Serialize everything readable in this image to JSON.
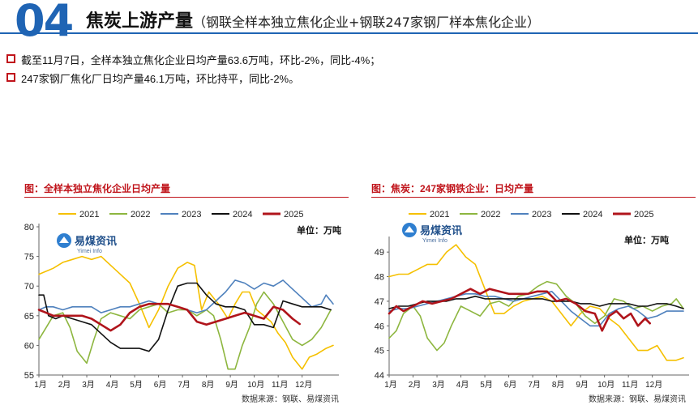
{
  "header": {
    "section_number": "04",
    "title": "焦炭上游产量",
    "subtitle": "（钢联全样本独立焦化企业+钢联247家钢厂样本焦化企业）"
  },
  "bullets": [
    "截至11月7日，全样本独立焦化企业日均产量63.6万吨，环比-2%，同比-4%；",
    "247家钢厂焦化厂日均产量46.1万吨，环比持平，同比-2%。"
  ],
  "colors": {
    "accent": "#1f64b4",
    "title_red": "#c0141b",
    "s2021": "#f5c000",
    "s2022": "#8db63f",
    "s2023": "#4f81bd",
    "s2024": "#111111",
    "s2025": "#b0141b"
  },
  "chart_data": [
    {
      "type": "line",
      "title": "图：全样本独立焦化企业日均产量",
      "unit_label": "单位：万吨",
      "watermark": "易煤资讯",
      "watermark_en": "Yimei Info",
      "source": "数据来源：钢联、易煤资讯",
      "x_ticks": [
        "1月",
        "2月",
        "3月",
        "4月",
        "5月",
        "6月",
        "7月",
        "8月",
        "9月",
        "10月",
        "11月",
        "12月"
      ],
      "xlim": [
        0,
        12.4
      ],
      "ylim": [
        55,
        80
      ],
      "y_ticks": [
        55,
        60,
        65,
        70,
        75,
        80
      ],
      "series": [
        {
          "name": "2021",
          "x": [
            0,
            0.3,
            0.6,
            1,
            1.4,
            1.8,
            2.2,
            2.6,
            3,
            3.4,
            3.8,
            4.2,
            4.6,
            5,
            5.4,
            5.8,
            6.2,
            6.5,
            6.8,
            7.1,
            7.5,
            7.9,
            8.2,
            8.5,
            8.8,
            9.1,
            9.4,
            9.7,
            10,
            10.3,
            10.6,
            11,
            11.3,
            11.6,
            12,
            12.3
          ],
          "values": [
            72,
            72.5,
            73,
            74,
            74.5,
            75,
            74.5,
            75,
            73.5,
            72,
            70.5,
            67,
            63,
            66,
            70,
            73,
            74,
            73.5,
            66,
            69,
            67,
            64.5,
            67,
            69,
            69,
            66,
            65,
            64,
            62,
            60.5,
            58,
            56,
            58,
            58.5,
            59.5,
            60
          ]
        },
        {
          "name": "2022",
          "x": [
            0,
            0.3,
            0.6,
            1,
            1.3,
            1.6,
            2,
            2.3,
            2.6,
            3,
            3.4,
            3.8,
            4.2,
            4.6,
            5,
            5.4,
            5.8,
            6.2,
            6.6,
            7,
            7.3,
            7.6,
            7.9,
            8.2,
            8.5,
            8.8,
            9.1,
            9.4,
            9.8,
            10.2,
            10.6,
            11,
            11.4,
            11.8,
            12.2
          ],
          "values": [
            61,
            63,
            65,
            65.5,
            63,
            59,
            57,
            61,
            64.5,
            65.5,
            65,
            64.5,
            66,
            66.5,
            67,
            65.5,
            66,
            66,
            65,
            66,
            65,
            61,
            56,
            56,
            60,
            63,
            67,
            69,
            67,
            64,
            61,
            60,
            61,
            63,
            66
          ]
        },
        {
          "name": "2023",
          "x": [
            0,
            0.3,
            0.6,
            1,
            1.4,
            1.8,
            2.2,
            2.6,
            3,
            3.4,
            3.8,
            4.2,
            4.6,
            5,
            5.4,
            5.8,
            6.2,
            6.6,
            7,
            7.4,
            7.8,
            8.2,
            8.6,
            9,
            9.4,
            9.8,
            10.2,
            10.6,
            11,
            11.4,
            11.8,
            12,
            12.3
          ],
          "values": [
            66,
            66.5,
            66.5,
            66,
            66.5,
            66.5,
            66.5,
            65.5,
            66,
            66.5,
            66.5,
            67,
            67.5,
            67,
            67,
            66.5,
            66,
            65.5,
            66,
            67.5,
            69,
            71,
            70.5,
            69.5,
            70.5,
            70,
            71,
            69.5,
            68,
            66.5,
            67,
            68.5,
            67
          ]
        },
        {
          "name": "2024",
          "x": [
            0,
            0.2,
            0.4,
            0.7,
            1,
            1.4,
            1.8,
            2.2,
            2.6,
            3,
            3.4,
            3.8,
            4.2,
            4.6,
            5,
            5.4,
            5.8,
            6.2,
            6.6,
            7,
            7.4,
            7.8,
            8.2,
            8.6,
            9,
            9.4,
            9.8,
            10.2,
            10.6,
            11,
            11.4,
            11.8,
            12.2
          ],
          "values": [
            68.5,
            68.5,
            65,
            64.5,
            65,
            64.5,
            64,
            63.5,
            62,
            60.5,
            59.5,
            59.5,
            59.5,
            59,
            61,
            66,
            70,
            70.5,
            70.5,
            68.5,
            67,
            66.5,
            66.5,
            66,
            63.5,
            63.5,
            63,
            67.5,
            67,
            66.5,
            66.5,
            66.5,
            66
          ]
        },
        {
          "name": "2025",
          "x": [
            0,
            0.3,
            0.6,
            1,
            1.4,
            1.8,
            2.2,
            2.6,
            3,
            3.4,
            3.8,
            4.2,
            4.6,
            5,
            5.4,
            5.8,
            6.2,
            6.6,
            7,
            7.4,
            7.8,
            8.2,
            8.6,
            9,
            9.4,
            9.8,
            10.2,
            10.6,
            10.9
          ],
          "values": [
            66,
            65.5,
            65,
            65,
            65,
            65,
            64.5,
            63.5,
            62.5,
            63.5,
            65.5,
            66.5,
            67,
            67,
            67,
            66.5,
            66,
            64,
            63.5,
            64,
            64.5,
            65,
            65.5,
            65,
            64.5,
            66.5,
            66,
            64.5,
            63.6
          ]
        }
      ]
    },
    {
      "type": "line",
      "title": "图：焦炭：247家钢铁企业：日均产量",
      "unit_label": "单位：万吨",
      "watermark": "易煤资讯",
      "watermark_en": "Yimei Info",
      "source": "数据来源：钢联、易煤资讯",
      "x_ticks": [
        "1月",
        "2月",
        "3月",
        "4月",
        "5月",
        "6月",
        "7月",
        "8月",
        "9月",
        "10月",
        "11月",
        "12月"
      ],
      "xlim": [
        0,
        12.4
      ],
      "ylim": [
        44,
        49.5
      ],
      "y_ticks": [
        44,
        45,
        46,
        47,
        48,
        49
      ],
      "series": [
        {
          "name": "2021",
          "x": [
            0,
            0.4,
            0.8,
            1.2,
            1.6,
            2,
            2.4,
            2.8,
            3.2,
            3.6,
            4,
            4.4,
            4.8,
            5.2,
            5.6,
            6,
            6.4,
            6.8,
            7.2,
            7.6,
            8,
            8.4,
            8.8,
            9.2,
            9.6,
            10,
            10.4,
            10.8,
            11.2,
            11.6,
            12,
            12.3
          ],
          "values": [
            48,
            48.1,
            48.1,
            48.3,
            48.5,
            48.5,
            49,
            49.3,
            48.8,
            48.5,
            47.5,
            46.5,
            46.5,
            46.8,
            47,
            47.1,
            47.2,
            47,
            46.5,
            46,
            46.5,
            46.8,
            46.7,
            46.3,
            46,
            45.5,
            45,
            45,
            45.2,
            44.6,
            44.6,
            44.7
          ]
        },
        {
          "name": "2022",
          "x": [
            0,
            0.3,
            0.6,
            1,
            1.3,
            1.6,
            2,
            2.3,
            2.6,
            3,
            3.4,
            3.8,
            4.2,
            4.6,
            5,
            5.4,
            5.8,
            6.2,
            6.6,
            7,
            7.4,
            7.8,
            8.2,
            8.6,
            9,
            9.4,
            9.8,
            10.2,
            10.6,
            11,
            11.4,
            11.8,
            12,
            12.3
          ],
          "values": [
            45.5,
            45.8,
            46.5,
            46.8,
            46.4,
            45.5,
            45,
            45.3,
            46,
            46.8,
            46.6,
            46.4,
            46.9,
            47.0,
            46.8,
            47.2,
            47.3,
            47.6,
            47.8,
            47.7,
            47.2,
            46.9,
            46.4,
            46.1,
            46.4,
            47.1,
            47.0,
            46.7,
            46.8,
            46.6,
            46.8,
            46.9,
            47.1,
            46.7
          ]
        },
        {
          "name": "2023",
          "x": [
            0,
            0.4,
            0.8,
            1.2,
            1.6,
            2,
            2.4,
            2.8,
            3.2,
            3.6,
            4,
            4.4,
            4.8,
            5.2,
            5.6,
            6,
            6.4,
            6.8,
            7.2,
            7.6,
            8,
            8.4,
            8.8,
            9.2,
            9.6,
            10,
            10.4,
            10.8,
            11.2,
            11.6,
            12,
            12.3
          ],
          "values": [
            46.6,
            46.7,
            46.7,
            46.8,
            46.9,
            47.0,
            47.1,
            47.2,
            47.3,
            47.3,
            47.2,
            47.2,
            47.1,
            47.0,
            47.1,
            47.2,
            47.3,
            47.4,
            47.0,
            46.6,
            46.3,
            46.0,
            46.0,
            46.5,
            46.7,
            46.8,
            46.6,
            46.3,
            46.4,
            46.6,
            46.6,
            46.6
          ]
        },
        {
          "name": "2024",
          "x": [
            0,
            0.4,
            0.8,
            1.2,
            1.6,
            2,
            2.4,
            2.8,
            3.2,
            3.6,
            4,
            4.4,
            4.8,
            5.2,
            5.6,
            6,
            6.4,
            6.8,
            7.2,
            7.6,
            8,
            8.4,
            8.8,
            9.2,
            9.6,
            10,
            10.4,
            10.8,
            11.2,
            11.6,
            12,
            12.3
          ],
          "values": [
            46.7,
            46.8,
            46.8,
            46.9,
            47.0,
            47.0,
            47.0,
            47.1,
            47.1,
            47.2,
            47.1,
            47.1,
            47.1,
            47.1,
            47.1,
            47.1,
            47.1,
            47.0,
            47.0,
            47.0,
            46.9,
            46.9,
            46.8,
            46.9,
            46.9,
            46.9,
            46.8,
            46.8,
            46.9,
            46.9,
            46.8,
            46.7
          ]
        },
        {
          "name": "2025",
          "x": [
            0,
            0.3,
            0.6,
            1,
            1.4,
            1.8,
            2.2,
            2.6,
            3,
            3.4,
            3.8,
            4.2,
            4.6,
            5,
            5.4,
            5.8,
            6.2,
            6.6,
            7,
            7.4,
            7.8,
            8.2,
            8.6,
            8.9,
            9.2,
            9.5,
            9.8,
            10.1,
            10.4,
            10.7,
            10.9
          ],
          "values": [
            46.5,
            46.8,
            46.6,
            46.8,
            47.0,
            46.9,
            47.0,
            47.1,
            47.3,
            47.5,
            47.3,
            47.5,
            47.4,
            47.3,
            47.3,
            47.3,
            47.4,
            47.4,
            47.0,
            47.1,
            46.9,
            46.6,
            46.5,
            45.8,
            46.4,
            46.6,
            46.3,
            46.5,
            46.0,
            46.3,
            46.1
          ]
        }
      ]
    }
  ]
}
